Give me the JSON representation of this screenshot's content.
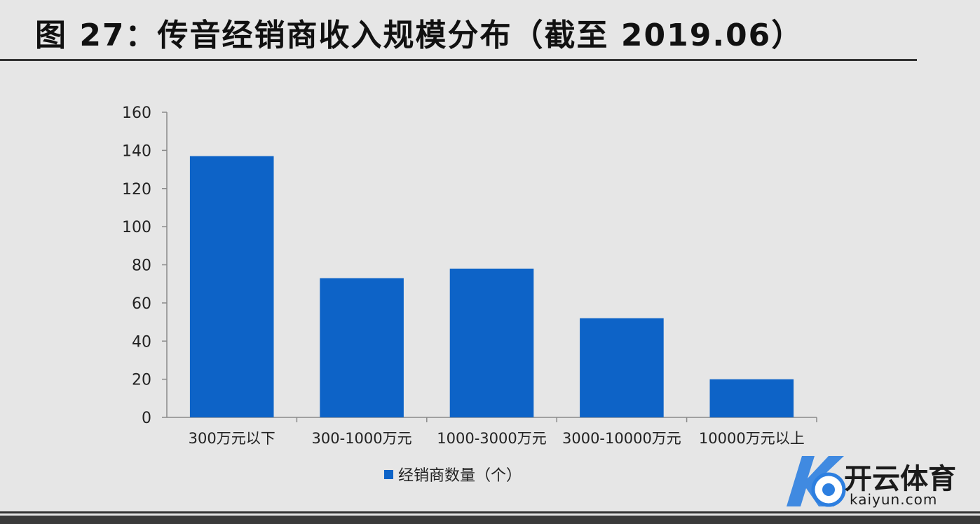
{
  "title": "图 27：传音经销商收入规模分布（截至 2019.06）",
  "chart_data": {
    "type": "bar",
    "title": "图 27：传音经销商收入规模分布（截至 2019.06）",
    "categories": [
      "300万元以下",
      "300-1000万元",
      "1000-3000万元",
      "3000-10000万元",
      "10000万元以上"
    ],
    "series": [
      {
        "name": "经销商数量（个）",
        "values": [
          137,
          73,
          78,
          52,
          20
        ]
      }
    ],
    "ylim": [
      0,
      160
    ],
    "yticks": [
      0,
      20,
      40,
      60,
      80,
      100,
      120,
      140,
      160
    ],
    "grid": false,
    "legend": "bottom-center",
    "bar_color": "#0d63c7",
    "axis_color": "#8a8a8a"
  },
  "watermark": {
    "text_cn": "开云体育",
    "text_en": "kaiyun.com",
    "accent": "#2d7fe0"
  }
}
